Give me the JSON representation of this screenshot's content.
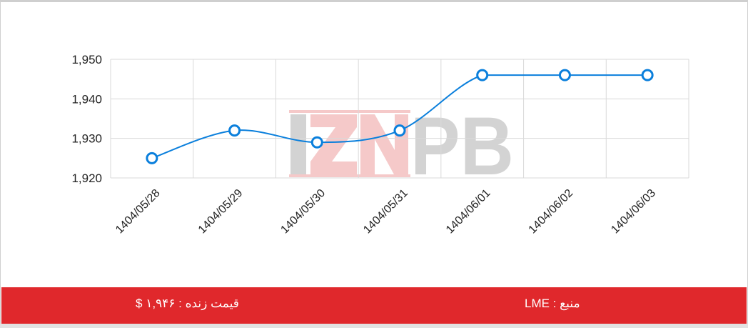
{
  "chart_data": {
    "type": "line",
    "categories": [
      "1404/05/28",
      "1404/05/29",
      "1404/05/30",
      "1404/05/31",
      "1404/06/01",
      "1404/06/02",
      "1404/06/03"
    ],
    "series": [
      {
        "values": [
          1925,
          1932,
          1929,
          1932,
          1946,
          1946,
          1946
        ],
        "color": "#0a7fdc"
      }
    ],
    "ylim": [
      1920,
      1950
    ],
    "yticks": [
      1920,
      1930,
      1940,
      1950
    ],
    "ytick_labels": [
      "1,920",
      "1,930",
      "1,940",
      "1,950"
    ],
    "grid": true,
    "smooth": true
  },
  "watermark": "IZNPB",
  "footer": {
    "live_price": "قیمت زنده : ۱,۹۴۶ $",
    "source": "منبع : LME",
    "color": "#e0282c"
  }
}
